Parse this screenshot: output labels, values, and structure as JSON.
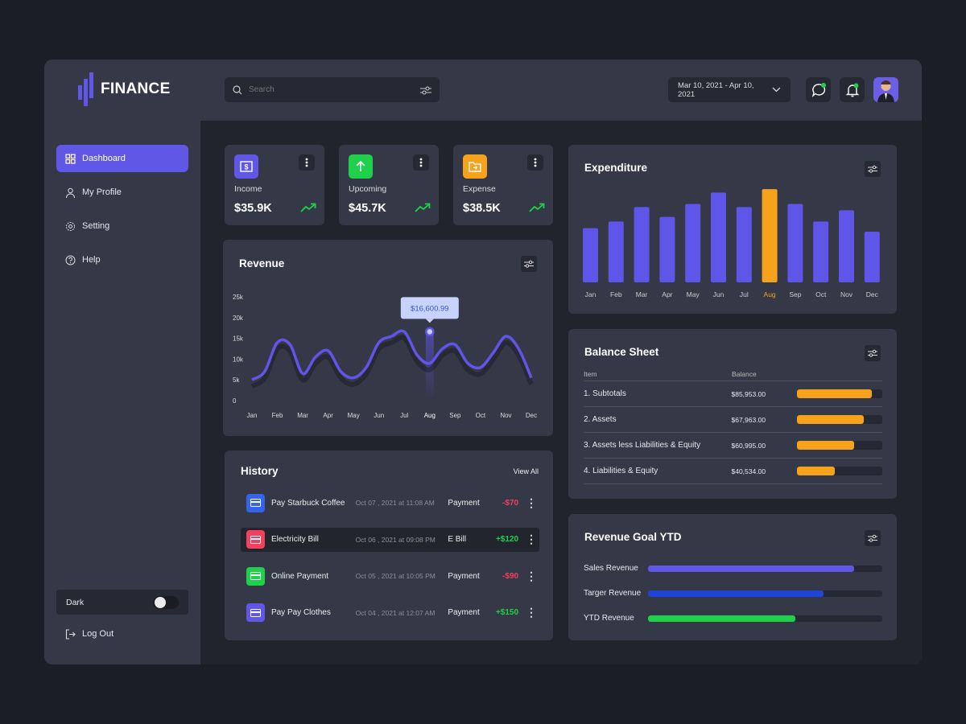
{
  "app": {
    "name": "FINANCE"
  },
  "header": {
    "search_placeholder": "Search",
    "date_range": "Mar 10, 2021 - Apr 10, 2021"
  },
  "sidebar": {
    "items": [
      {
        "label": "Dashboard",
        "icon": "grid-icon",
        "active": true
      },
      {
        "label": "My Profile",
        "icon": "user-icon"
      },
      {
        "label": "Setting",
        "icon": "gear-icon"
      },
      {
        "label": "Help",
        "icon": "help-icon"
      }
    ],
    "dark_label": "Dark",
    "logout_label": "Log Out"
  },
  "stats": [
    {
      "label": "Income",
      "value": "$35.9K",
      "color": "#6157e6",
      "icon": "dollar-icon"
    },
    {
      "label": "Upcoming",
      "value": "$45.7K",
      "color": "#1fd14a",
      "icon": "arrow-up-icon"
    },
    {
      "label": "Expense",
      "value": "$38.5K",
      "color": "#f7a21b",
      "icon": "folder-icon"
    }
  ],
  "revenue": {
    "title": "Revenue",
    "tooltip": "$16,600.99"
  },
  "history": {
    "title": "History",
    "view_all": "View All",
    "rows": [
      {
        "name": "Pay Starbuck Coffee",
        "date": "Oct 07 , 2021 at 11:08 AM",
        "type": "Payment",
        "amount": "-$70",
        "positive": false,
        "color": "#3563e9"
      },
      {
        "name": "Electricity Bill",
        "date": "Oct 06 , 2021 at 09:08 PM",
        "type": "E Bill",
        "amount": "+$120",
        "positive": true,
        "color": "#f2405f"
      },
      {
        "name": "Online Payment",
        "date": "Oct 05 , 2021 at 10:05 PM",
        "type": "Payment",
        "amount": "-$90",
        "positive": false,
        "color": "#1fd14a"
      },
      {
        "name": "Pay Pay Clothes",
        "date": "Oct 04 , 2021 at 12:07 AM",
        "type": "Payment",
        "amount": "+$150",
        "positive": true,
        "color": "#6157e6"
      }
    ]
  },
  "expenditure": {
    "title": "Expenditure"
  },
  "balance": {
    "title": "Balance Sheet",
    "col_item": "Item",
    "col_balance": "Balance",
    "rows": [
      {
        "item": "1. Subtotals",
        "balance": "$85,953.00",
        "fraction": 0.88
      },
      {
        "item": "2. Assets",
        "balance": "$67,963.00",
        "fraction": 0.78
      },
      {
        "item": "3. Assets less Liabilities & Equity",
        "balance": "$60,995.00",
        "fraction": 0.67
      },
      {
        "item": "4. Liabilities & Equity",
        "balance": "$40,534.00",
        "fraction": 0.44
      }
    ]
  },
  "goal": {
    "title": "Revenue Goal YTD",
    "rows": [
      {
        "label": "Sales Revenue",
        "fraction": 0.88,
        "color": "#6157e6"
      },
      {
        "label": "Targer Revenue",
        "fraction": 0.75,
        "color": "#1f44d6"
      },
      {
        "label": "YTD Revenue",
        "fraction": 0.63,
        "color": "#1fd14a"
      }
    ]
  },
  "chart_data": [
    {
      "type": "line",
      "title": "Revenue",
      "categories": [
        "Jan",
        "Feb",
        "Mar",
        "Apr",
        "May",
        "Jun",
        "Jul",
        "Aug",
        "Sep",
        "Oct",
        "Nov",
        "Dec"
      ],
      "yticks": [
        "0",
        "5k",
        "10k",
        "15k",
        "20k",
        "25k"
      ],
      "ylim": [
        0,
        25000
      ],
      "highlight": "Aug",
      "x": [
        0,
        0.5,
        1,
        1.5,
        2,
        2.5,
        3,
        3.5,
        4,
        4.5,
        5,
        5.5,
        6,
        6.5,
        7,
        7.5,
        8,
        8.5,
        9,
        9.5,
        10,
        10.5,
        11
      ],
      "values": [
        5000,
        7000,
        14000,
        13500,
        6500,
        10500,
        12000,
        7000,
        5500,
        8000,
        14000,
        15500,
        16600,
        11000,
        9000,
        12500,
        13500,
        9000,
        8000,
        11500,
        15500,
        12500,
        5500
      ]
    },
    {
      "type": "bar",
      "title": "Expenditure",
      "categories": [
        "Jan",
        "Feb",
        "Mar",
        "Apr",
        "May",
        "Jun",
        "Jul",
        "Aug",
        "Sep",
        "Oct",
        "Nov",
        "Dec"
      ],
      "values": [
        187,
        210,
        260,
        226,
        271,
        310,
        260,
        322,
        271,
        210,
        249,
        175
      ],
      "highlight": "Aug",
      "colors": {
        "normal": "#5f55e8",
        "highlight": "#f7a21b"
      }
    }
  ]
}
